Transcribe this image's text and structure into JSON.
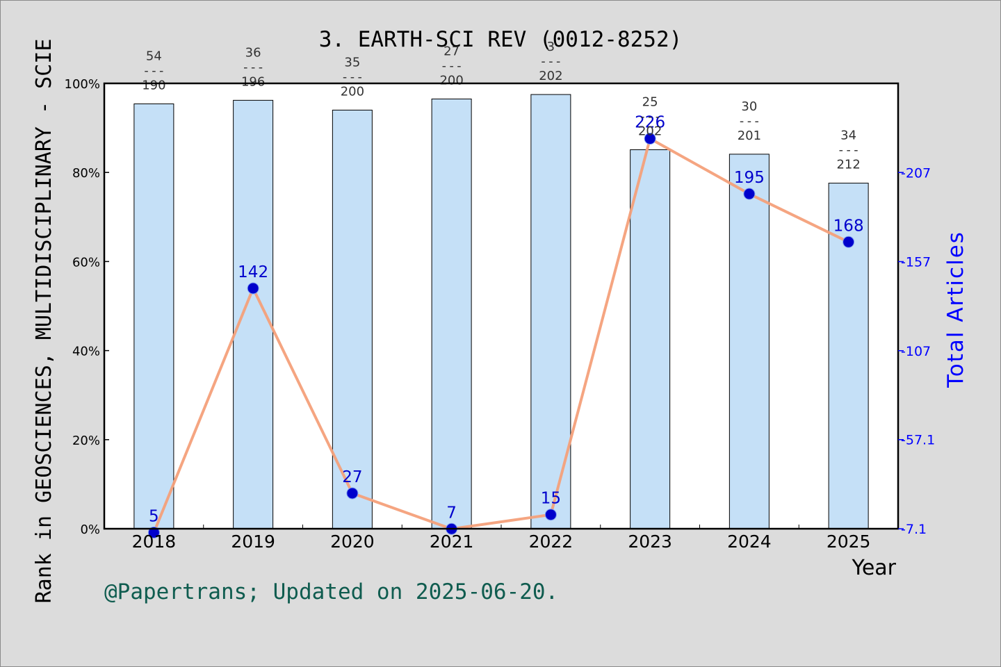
{
  "chart_data": {
    "type": "bar",
    "title": "3. EARTH-SCI REV (0012-8252)",
    "xlabel": "Year",
    "ylabel": "Rank in GEOSCIENCES, MULTIDISCIPLINARY - SCIE",
    "y2label": "Total Articles",
    "categories": [
      "2018",
      "2019",
      "2020",
      "2021",
      "2022",
      "2023",
      "2024",
      "2025"
    ],
    "ylim": [
      0,
      100
    ],
    "y_ticks": [
      "0%",
      "20%",
      "40%",
      "60%",
      "80%",
      "100%"
    ],
    "y2lim": [
      7.1,
      257
    ],
    "y2_ticks": [
      "7.1",
      "57.1",
      "107",
      "157",
      "207"
    ],
    "series": [
      {
        "kind": "bar",
        "values": [
          95.4,
          96.2,
          94.0,
          96.5,
          97.5,
          85.1,
          84.1,
          77.6
        ],
        "rank_labels": [
          {
            "rank": "54",
            "sep": "---",
            "total": "190"
          },
          {
            "rank": "36",
            "sep": "---",
            "total": "196"
          },
          {
            "rank": "35",
            "sep": "---",
            "total": "200"
          },
          {
            "rank": "27",
            "sep": "---",
            "total": "200"
          },
          {
            "rank": "3",
            "sep": "---",
            "total": "202"
          },
          {
            "rank": "25",
            "sep": "---",
            "total": "202"
          },
          {
            "rank": "30",
            "sep": "---",
            "total": "201"
          },
          {
            "rank": "34",
            "sep": "---",
            "total": "212"
          }
        ]
      },
      {
        "kind": "line",
        "axis": "right",
        "values": [
          5,
          142,
          27,
          7,
          15,
          226,
          195,
          168
        ],
        "labels": [
          "5",
          "142",
          "27",
          "7",
          "15",
          "226",
          "195",
          "168"
        ]
      }
    ],
    "colors": {
      "bar_fill": "#c5e0f7",
      "line": "#f4a07a",
      "marker": "#0000cc",
      "right_axis": "#0000ff",
      "credit": "#0f5c4f"
    },
    "grid": false
  },
  "footer": {
    "credit": "@Papertrans; Updated on 2025-06-20."
  }
}
